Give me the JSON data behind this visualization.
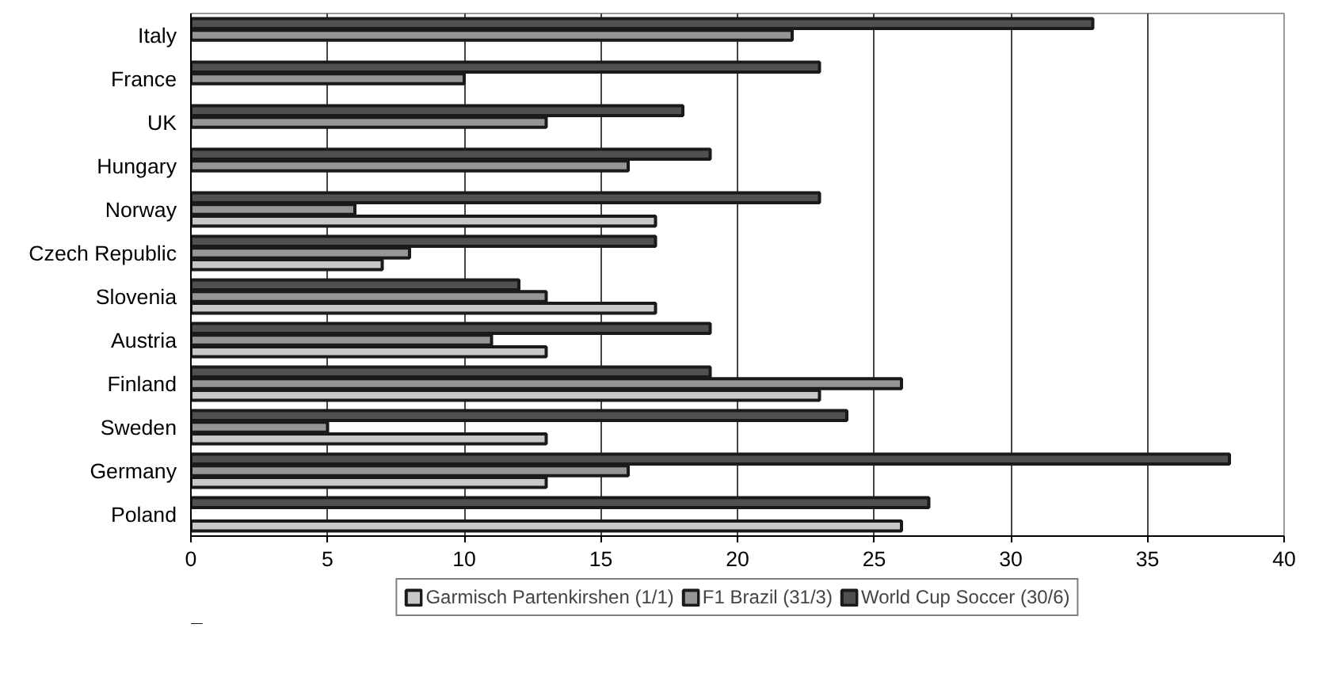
{
  "chart_data": {
    "type": "bar",
    "orientation": "horizontal",
    "categories": [
      "Italy",
      "France",
      "UK",
      "Hungary",
      "Norway",
      "Czech Republic",
      "Slovenia",
      "Austria",
      "Finland",
      "Sweden",
      "Germany",
      "Poland"
    ],
    "series": [
      {
        "name": "Garmisch Partenkirshen (1/1)",
        "color": "#c8c8c8",
        "values": [
          null,
          null,
          null,
          null,
          17,
          7,
          17,
          13,
          23,
          13,
          13,
          26
        ]
      },
      {
        "name": "F1 Brazil (31/3)",
        "color": "#969696",
        "values": [
          22,
          10,
          13,
          16,
          6,
          8,
          13,
          11,
          26,
          5,
          16,
          null
        ]
      },
      {
        "name": "World Cup Soccer (30/6)",
        "color": "#505050",
        "values": [
          33,
          23,
          18,
          19,
          23,
          17,
          12,
          19,
          19,
          24,
          38,
          27
        ]
      }
    ],
    "xlim": [
      0,
      40
    ],
    "xticks": [
      0,
      5,
      10,
      15,
      20,
      25,
      30,
      35,
      40
    ],
    "grid": "x",
    "legend": "bottom"
  }
}
